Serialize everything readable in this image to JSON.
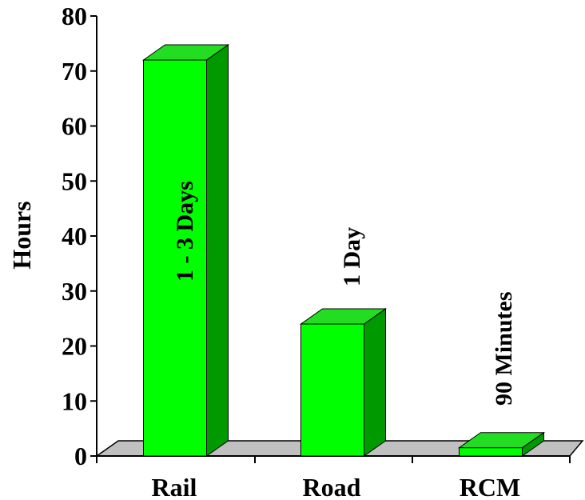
{
  "chart_data": {
    "type": "bar",
    "categories": [
      "Rail",
      "Road",
      "RCM"
    ],
    "values": [
      72,
      24,
      1.5
    ],
    "bar_labels": [
      "1 - 3 Days",
      "1 Day",
      "90 Minutes"
    ],
    "title": "",
    "xlabel": "",
    "ylabel": "Hours",
    "ylim": [
      0,
      80
    ],
    "yticks": [
      0,
      10,
      20,
      30,
      40,
      50,
      60,
      70,
      80
    ],
    "grid": false,
    "legend": "none",
    "style": "3d"
  },
  "colors": {
    "bar_front": "#00ff00",
    "bar_top": "#22dd22",
    "bar_side": "#009900",
    "floor": "#c0c0c0",
    "axis": "#000000"
  }
}
